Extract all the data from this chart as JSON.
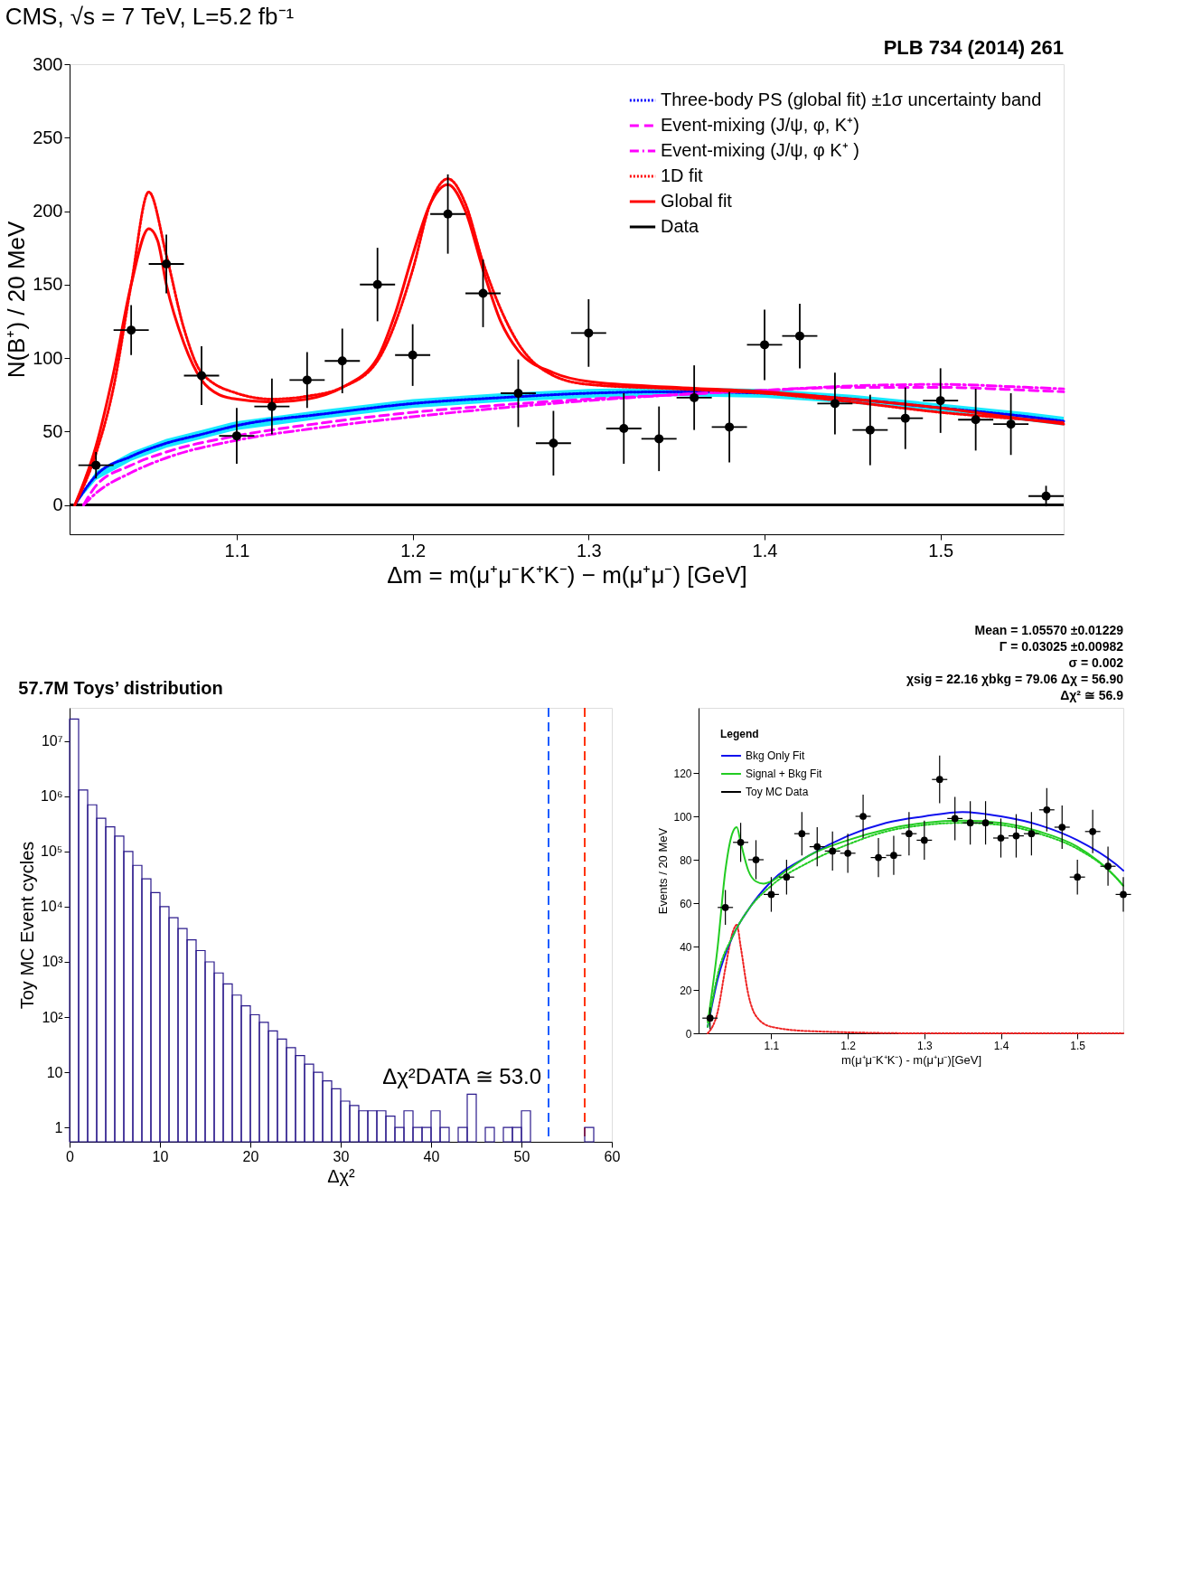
{
  "chart_data": [
    {
      "type": "line",
      "title": "CMS, √s = 7 TeV, L=5.2 fb⁻¹",
      "xlabel": "Δm = m(μ⁺μ⁻K⁺K⁻) − m(μ⁺μ⁻) [GeV]",
      "ylabel": "N(B⁺) / 20 MeV",
      "xlim": [
        1.005,
        1.57
      ],
      "ylim": [
        -20,
        300
      ],
      "xticks": [
        1.1,
        1.2,
        1.3,
        1.4,
        1.5
      ],
      "yticks": [
        0,
        50,
        100,
        150,
        200,
        250,
        300
      ],
      "legend": "top right",
      "annotations": [
        "PLB 734 (2014) 261"
      ],
      "ref_lines": [
        {
          "axis": "y",
          "value": 0,
          "color": "#000000"
        }
      ],
      "series": [
        {
          "name": "Three-body PS (global fit) ±1σ uncertainty band",
          "type": "line",
          "color": "#0000ff",
          "line_style": "dotted",
          "x": [
            1.008,
            1.02,
            1.04,
            1.06,
            1.08,
            1.1,
            1.15,
            1.2,
            1.25,
            1.3,
            1.35,
            1.4,
            1.45,
            1.5,
            1.55,
            1.57
          ],
          "values": [
            0,
            20,
            33,
            42,
            48,
            54,
            62,
            69,
            73,
            76,
            77,
            76,
            72,
            66,
            60,
            57
          ],
          "lower": [
            0,
            17,
            30,
            39,
            45,
            51,
            59,
            66,
            70,
            73,
            74,
            73,
            69,
            63,
            57,
            54
          ],
          "upper": [
            0,
            23,
            36,
            45,
            51,
            57,
            65,
            72,
            76,
            79,
            80,
            79,
            75,
            69,
            63,
            60
          ]
        },
        {
          "name": "Event-mixing (J/ψ, φ, K⁺)",
          "type": "line",
          "color": "#ff00ff",
          "line_style": "dashed",
          "x": [
            1.013,
            1.02,
            1.04,
            1.06,
            1.1,
            1.15,
            1.2,
            1.25,
            1.3,
            1.35,
            1.4,
            1.45,
            1.5,
            1.55,
            1.57
          ],
          "values": [
            0,
            13,
            27,
            36,
            47,
            56,
            63,
            68,
            72,
            75,
            78,
            80,
            80,
            78,
            77
          ]
        },
        {
          "name": "Event-mixing (J/ψ, φ K⁺ )",
          "type": "line",
          "color": "#ff00ff",
          "line_style": "dashdot",
          "x": [
            1.013,
            1.02,
            1.04,
            1.06,
            1.1,
            1.15,
            1.2,
            1.25,
            1.3,
            1.35,
            1.4,
            1.45,
            1.5,
            1.55,
            1.57
          ],
          "values": [
            0,
            8,
            22,
            32,
            44,
            53,
            60,
            66,
            71,
            75,
            78,
            81,
            82,
            80,
            79
          ]
        },
        {
          "name": "1D fit",
          "type": "line",
          "color": "#ff0000",
          "line_style": "dotted",
          "x": [
            1.008,
            1.02,
            1.03,
            1.04,
            1.05,
            1.06,
            1.07,
            1.08,
            1.1,
            1.12,
            1.14,
            1.16,
            1.18,
            1.2,
            1.21,
            1.22,
            1.23,
            1.24,
            1.26,
            1.28,
            1.3,
            1.35,
            1.4,
            1.45,
            1.5,
            1.55,
            1.57
          ],
          "values": [
            0,
            35,
            80,
            150,
            213,
            170,
            120,
            90,
            76,
            72,
            74,
            80,
            98,
            160,
            205,
            222,
            205,
            165,
            110,
            88,
            82,
            79,
            76,
            70,
            63,
            58,
            56
          ]
        },
        {
          "name": "Global fit",
          "type": "line",
          "color": "#ff0000",
          "line_style": "solid",
          "x": [
            1.008,
            1.02,
            1.03,
            1.04,
            1.05,
            1.055,
            1.06,
            1.07,
            1.08,
            1.09,
            1.1,
            1.12,
            1.14,
            1.16,
            1.18,
            1.19,
            1.2,
            1.21,
            1.22,
            1.23,
            1.24,
            1.25,
            1.26,
            1.28,
            1.3,
            1.35,
            1.4,
            1.45,
            1.5,
            1.55,
            1.57
          ],
          "values": [
            0,
            40,
            90,
            150,
            188,
            180,
            150,
            110,
            85,
            75,
            72,
            70,
            72,
            80,
            100,
            130,
            170,
            205,
            218,
            200,
            160,
            125,
            105,
            90,
            84,
            80,
            77,
            72,
            66,
            58,
            55
          ]
        },
        {
          "name": "Data",
          "type": "scatter",
          "color": "#000000",
          "marker": "circle",
          "x": [
            1.02,
            1.04,
            1.06,
            1.08,
            1.1,
            1.12,
            1.14,
            1.16,
            1.18,
            1.2,
            1.22,
            1.24,
            1.26,
            1.28,
            1.3,
            1.32,
            1.34,
            1.36,
            1.38,
            1.4,
            1.42,
            1.44,
            1.46,
            1.48,
            1.5,
            1.52,
            1.54,
            1.56
          ],
          "values": [
            27,
            119,
            164,
            88,
            47,
            67,
            85,
            98,
            150,
            102,
            198,
            144,
            76,
            42,
            117,
            52,
            45,
            73,
            53,
            109,
            115,
            69,
            51,
            59,
            71,
            58,
            55,
            6
          ],
          "errors": [
            9,
            17,
            20,
            20,
            19,
            19,
            19,
            22,
            25,
            21,
            27,
            23,
            23,
            22,
            23,
            24,
            22,
            22,
            24,
            24,
            22,
            21,
            24,
            21,
            22,
            21,
            21,
            7
          ],
          "xerrors": [
            0.01,
            0.01,
            0.01,
            0.01,
            0.01,
            0.01,
            0.01,
            0.01,
            0.01,
            0.01,
            0.01,
            0.01,
            0.01,
            0.01,
            0.01,
            0.01,
            0.01,
            0.01,
            0.01,
            0.01,
            0.01,
            0.01,
            0.01,
            0.01,
            0.01,
            0.01,
            0.01,
            0.01
          ]
        }
      ]
    },
    {
      "type": "histogram",
      "title": "57.7M Toys’ distribution",
      "xlabel": "Δχ²",
      "ylabel": "Toy MC Event cycles",
      "log": "y",
      "xlim": [
        0,
        60
      ],
      "ylim": [
        0.55,
        40000000
      ],
      "xticks": [
        0,
        10,
        20,
        30,
        40,
        50,
        60
      ],
      "yticks": [
        1,
        10,
        {
          "value": 100,
          "label": "10²"
        },
        {
          "value": 1000,
          "label": "10³"
        },
        {
          "value": 10000,
          "label": "10⁴"
        },
        {
          "value": 100000,
          "label": "10⁵"
        },
        {
          "value": 1000000,
          "label": "10⁶"
        },
        {
          "value": 10000000,
          "label": "10⁷"
        }
      ],
      "color": "#2b1a8c",
      "bins": [
        0,
        1,
        2,
        3,
        4,
        5,
        6,
        7,
        8,
        9,
        10,
        11,
        12,
        13,
        14,
        15,
        16,
        17,
        18,
        19,
        20,
        21,
        22,
        23,
        24,
        25,
        26,
        27,
        28,
        29,
        30,
        31,
        32,
        33,
        34,
        35,
        36,
        37,
        38,
        39,
        40,
        41,
        42,
        43,
        44,
        45,
        46,
        47,
        48,
        49,
        50,
        51,
        52,
        53,
        54,
        55,
        56,
        57,
        58,
        59,
        60
      ],
      "values": [
        25000000,
        1300000,
        700000,
        400000,
        280000,
        190000,
        100000,
        56000,
        32000,
        18000,
        10000,
        6300,
        4000,
        2500,
        1600,
        1000,
        630,
        400,
        250,
        160,
        110,
        80,
        56,
        40,
        28,
        20,
        14,
        10,
        7,
        5,
        3,
        2.5,
        2,
        2,
        2,
        1.6,
        1,
        2,
        1,
        1,
        2,
        1,
        null,
        1,
        4,
        null,
        1,
        null,
        1,
        1,
        2,
        null,
        null,
        null,
        null,
        null,
        null,
        1,
        null,
        null
      ],
      "ref_lines": [
        {
          "axis": "x",
          "value": 53,
          "label": "Δχ²DATA ≅ 53.0",
          "color": "#1a5cff",
          "line_style": "dashed"
        },
        {
          "axis": "x",
          "value": 57,
          "color": "#ff3300",
          "line_style": "dashed"
        }
      ]
    },
    {
      "type": "line",
      "legend_title": "Legend",
      "legend": "top left",
      "xlabel": "m(μ⁺μ⁻K⁺K⁻) - m(μ⁺μ⁻)[GeV]",
      "ylabel": "Events / 20 MeV",
      "xlim": [
        1.005,
        1.56
      ],
      "ylim": [
        0,
        150
      ],
      "xticks": [
        1.1,
        1.2,
        1.3,
        1.4,
        1.5
      ],
      "yticks": [
        0,
        20,
        40,
        60,
        80,
        100,
        120
      ],
      "annotations": [
        "Mean = 1.05570 ±0.01229",
        "Γ = 0.03025 ±0.00982",
        "σ = 0.002",
        "χsig = 22.16 χbkg = 79.06 Δχ = 56.90",
        "Δχ² ≅ 56.9"
      ],
      "series": [
        {
          "type": "line",
          "color": "#ee2222",
          "line_style": "dotted",
          "x": [
            1.017,
            1.03,
            1.04,
            1.05,
            1.055,
            1.06,
            1.07,
            1.08,
            1.1,
            1.15,
            1.3,
            1.56
          ],
          "values": [
            0,
            10,
            30,
            47,
            50,
            40,
            18,
            8,
            3,
            1,
            0,
            0
          ]
        },
        {
          "name": "Bkg Only Fit",
          "type": "line",
          "color": "#1010ee",
          "line_style": "solid",
          "x": [
            1.017,
            1.03,
            1.05,
            1.07,
            1.1,
            1.15,
            1.2,
            1.25,
            1.3,
            1.35,
            1.4,
            1.45,
            1.5,
            1.55,
            1.56
          ],
          "values": [
            3,
            25,
            45,
            57,
            70,
            82,
            91,
            97,
            100,
            102,
            100,
            96,
            89,
            78,
            75
          ]
        },
        {
          "name": "Signal + Bkg Fit",
          "type": "line",
          "color": "#22cc22",
          "line_style": "solid",
          "x": [
            1.017,
            1.03,
            1.04,
            1.05,
            1.055,
            1.06,
            1.07,
            1.08,
            1.09,
            1.1,
            1.12,
            1.15,
            1.2,
            1.25,
            1.3,
            1.35,
            1.4,
            1.45,
            1.5,
            1.55,
            1.56
          ],
          "values": [
            5,
            40,
            75,
            93,
            95,
            88,
            75,
            70,
            69,
            70,
            75,
            82,
            89,
            94,
            97,
            98,
            97,
            93,
            86,
            72,
            68
          ]
        },
        {
          "type": "line",
          "color": "#22cc22",
          "line_style": "dotted",
          "x": [
            1.017,
            1.03,
            1.05,
            1.07,
            1.1,
            1.15,
            1.2,
            1.25,
            1.3,
            1.35,
            1.4,
            1.45,
            1.5,
            1.55,
            1.56
          ],
          "values": [
            3,
            27,
            45,
            57,
            68,
            79,
            87,
            93,
            96,
            97,
            96,
            92,
            85,
            72,
            68
          ]
        },
        {
          "name": "Toy MC Data",
          "type": "scatter",
          "color": "#000000",
          "marker": "circle",
          "x": [
            1.02,
            1.04,
            1.06,
            1.08,
            1.1,
            1.12,
            1.14,
            1.16,
            1.18,
            1.2,
            1.22,
            1.24,
            1.26,
            1.28,
            1.3,
            1.32,
            1.34,
            1.36,
            1.38,
            1.4,
            1.42,
            1.44,
            1.46,
            1.48,
            1.5,
            1.52,
            1.54,
            1.56
          ],
          "values": [
            7,
            58,
            88,
            80,
            64,
            72,
            92,
            86,
            84,
            83,
            100,
            81,
            82,
            92,
            89,
            117,
            99,
            97,
            97,
            90,
            91,
            92,
            103,
            95,
            72,
            93,
            77,
            64
          ],
          "errors": [
            5,
            8,
            9,
            9,
            8,
            8,
            10,
            9,
            9,
            9,
            10,
            9,
            9,
            10,
            9,
            11,
            10,
            10,
            10,
            9,
            10,
            10,
            10,
            10,
            8,
            10,
            9,
            8
          ],
          "xerrors": [
            0.01,
            0.01,
            0.01,
            0.01,
            0.01,
            0.01,
            0.01,
            0.01,
            0.01,
            0.01,
            0.01,
            0.01,
            0.01,
            0.01,
            0.01,
            0.01,
            0.01,
            0.01,
            0.01,
            0.01,
            0.01,
            0.01,
            0.01,
            0.01,
            0.01,
            0.01,
            0.01,
            0.01
          ]
        }
      ]
    }
  ]
}
